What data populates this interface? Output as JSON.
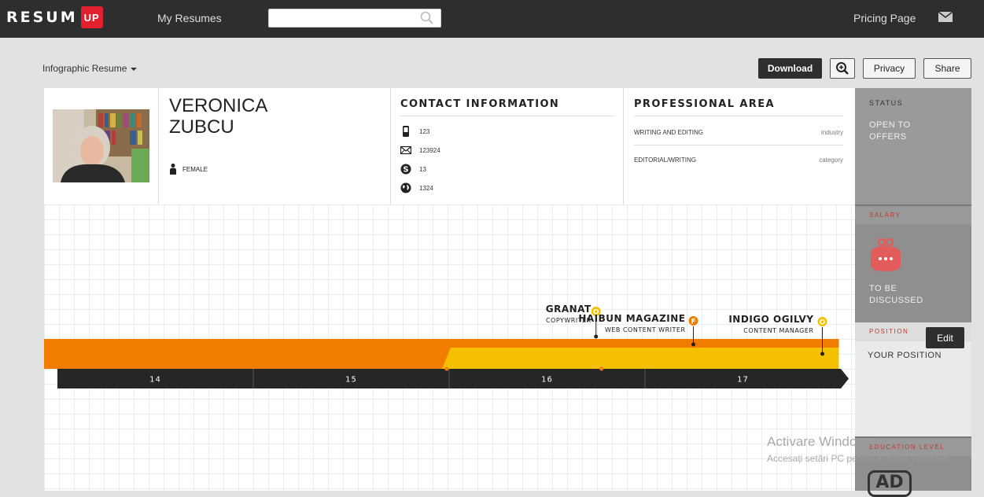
{
  "nav": {
    "logo_text": "RESUM",
    "logo_badge": "UP",
    "my_resumes": "My Resumes",
    "search_placeholder": "",
    "pricing": "Pricing Page"
  },
  "toolbar": {
    "template_label": "Infographic Resume",
    "download": "Download",
    "privacy": "Privacy",
    "share": "Share"
  },
  "profile": {
    "first_name": "VERONICA",
    "last_name": "ZUBCU",
    "gender": "FEMALE"
  },
  "contact": {
    "title": "CONTACT INFORMATION",
    "phone": "123",
    "email": "123924",
    "skype": "13",
    "web": "1324"
  },
  "professional": {
    "title": "PROFESSIONAL AREA",
    "rows": [
      {
        "value": "WRITING AND EDITING",
        "key": "industry"
      },
      {
        "value": "EDITORIAL/WRITING",
        "key": "category"
      }
    ]
  },
  "sidebar": {
    "status_title": "STATUS",
    "status_value": "OPEN TO OFFERS",
    "salary_title": "SALARY",
    "salary_value": "TO BE DISCUSSED",
    "position_title": "POSITION",
    "position_value": "YOUR POSITION",
    "edit": "Edit",
    "education_title": "EDUCATION LEVEL",
    "education_badge": "AD"
  },
  "chart_data": {
    "type": "timeline",
    "categories": [
      "14",
      "15",
      "16",
      "17"
    ],
    "series": [
      {
        "company": "GRANAT",
        "role": "COPYWRITER",
        "badge": "O",
        "start": 16.04,
        "end": 16.79
      },
      {
        "company": "HAIBUN MAGAZINE",
        "role": "WEB CONTENT WRITER",
        "badge": "F",
        "start": 13.7,
        "end": 17.99
      },
      {
        "company": "INDIGO OGILVY",
        "role": "CONTENT MANAGER",
        "badge": "O",
        "start": 16.0,
        "end": 17.99
      }
    ]
  },
  "watermark": {
    "line1": "Activare Windows",
    "line2": "Accesați setări PC pentru a activa Windows"
  },
  "colors": {
    "accent_red": "#e2202f",
    "orange": "#f07d00",
    "yellow": "#f5c000",
    "dark": "#2e2e2e"
  }
}
